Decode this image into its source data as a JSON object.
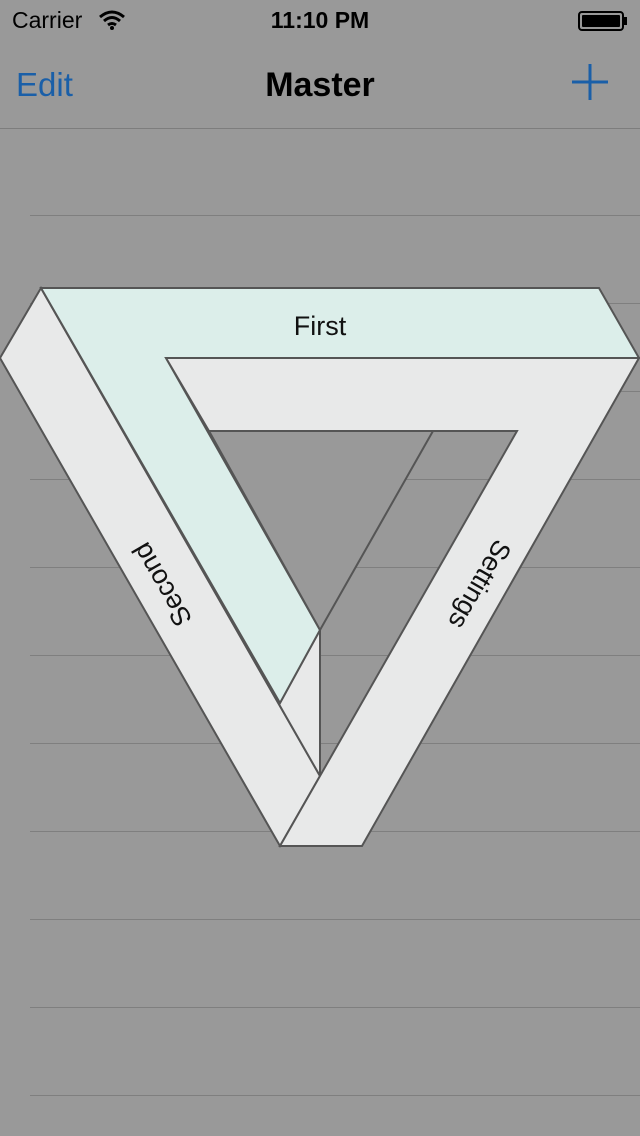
{
  "status_bar": {
    "carrier": "Carrier",
    "time": "11:10 PM",
    "wifi_icon": "wifi-icon",
    "battery_icon": "battery-icon"
  },
  "nav_bar": {
    "edit_label": "Edit",
    "title": "Master",
    "add_icon": "plus-icon",
    "accent_color": "#1a5fa8"
  },
  "menu": {
    "first_label": "First",
    "second_label": "Second",
    "settings_label": "Settings",
    "first_fill": "#dceeea",
    "band_fill": "#e8e9e9"
  },
  "colors": {
    "background": "#999999"
  }
}
